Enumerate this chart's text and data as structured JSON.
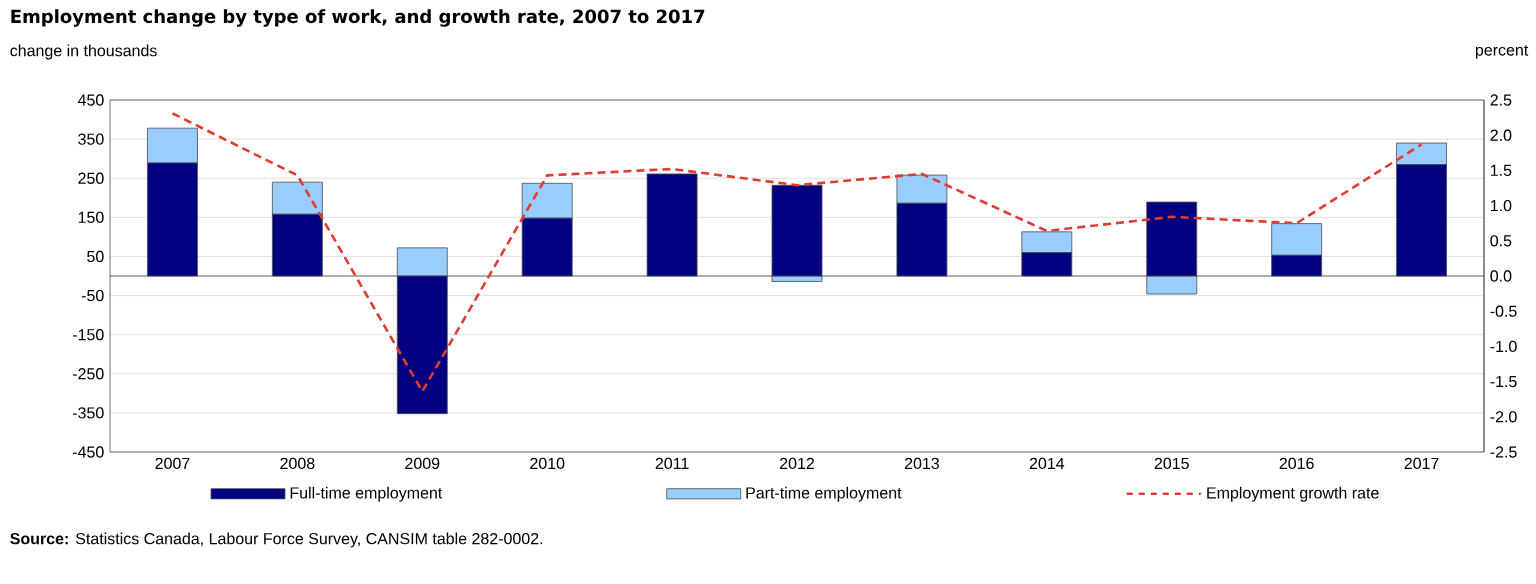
{
  "chart_data": {
    "type": "bar",
    "title": "Employment change by type of work, and growth rate, 2007 to 2017",
    "ylabel": "change in thousands",
    "y2label": "percent",
    "categories": [
      "2007",
      "2008",
      "2009",
      "2010",
      "2011",
      "2012",
      "2013",
      "2014",
      "2015",
      "2016",
      "2017"
    ],
    "stacked": true,
    "series": [
      {
        "name": "Full-time employment",
        "color": "#000080",
        "values": [
          289,
          158,
          -352,
          148,
          261,
          232,
          186,
          60,
          189,
          53,
          285
        ]
      },
      {
        "name": "Part-time employment",
        "color": "#99ccff",
        "values": [
          89,
          82,
          72,
          89,
          0,
          -14,
          72,
          53,
          -46,
          81,
          55
        ]
      },
      {
        "name": "Employment growth rate",
        "type": "line",
        "axis": "y2",
        "color": "#e03c31",
        "line_style": "dashed",
        "marker": "none",
        "values": [
          2.31,
          1.43,
          -1.64,
          1.43,
          1.52,
          1.29,
          1.45,
          0.64,
          0.84,
          0.75,
          1.87
        ]
      }
    ],
    "ylim": [
      -450,
      450
    ],
    "yticks": [
      -450,
      -350,
      -250,
      -150,
      -50,
      50,
      150,
      250,
      350,
      450
    ],
    "y2lim": [
      -2.5,
      2.5
    ],
    "y2ticks": [
      {
        "value": -2.5,
        "label": "-2.5"
      },
      {
        "value": -2.0,
        "label": "-2.0"
      },
      {
        "value": -1.5,
        "label": "-1.5"
      },
      {
        "value": -1.0,
        "label": "-1.0"
      },
      {
        "value": -0.5,
        "label": "-0.5"
      },
      {
        "value": 0,
        "label": "0.0"
      },
      {
        "value": 0.5,
        "label": "0.5"
      },
      {
        "value": 1.0,
        "label": "1.0"
      },
      {
        "value": 1.5,
        "label": "1.5"
      },
      {
        "value": 2.0,
        "label": "2.0"
      },
      {
        "value": 2.5,
        "label": "2.5"
      }
    ],
    "grid": "y",
    "legend": "bottom",
    "annotations": [
      "**Source:** Statistics Canada, Labour Force Survey, CANSIM table 282-0002."
    ]
  }
}
